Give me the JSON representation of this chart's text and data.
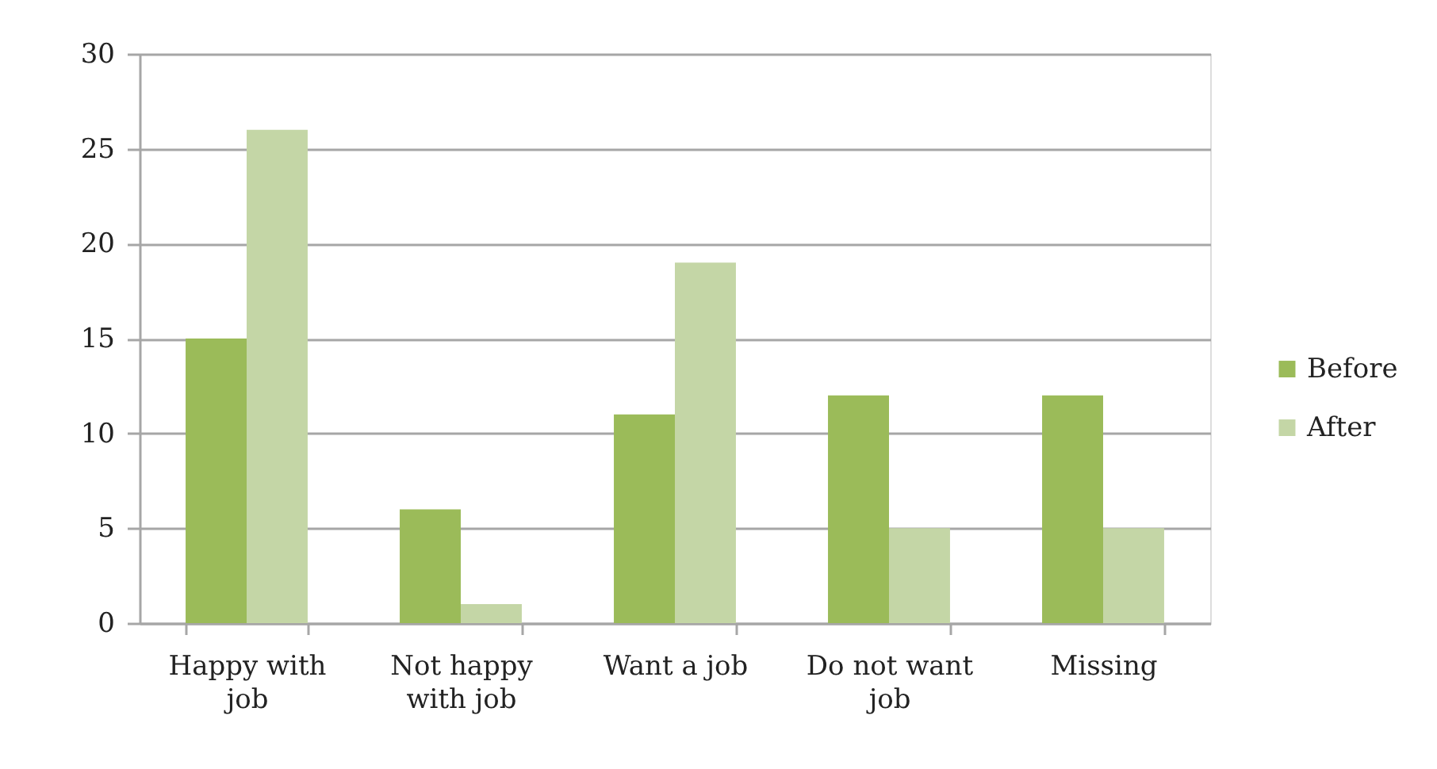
{
  "chart_data": {
    "type": "bar",
    "categories": [
      "Happy with job",
      "Not happy with job",
      "Want a job",
      "Do not want job",
      "Missing"
    ],
    "series": [
      {
        "name": "Before",
        "color": "#9bbb59",
        "values": [
          15,
          6,
          11,
          12,
          12
        ]
      },
      {
        "name": "After",
        "color": "#c4d6a6",
        "values": [
          26,
          1,
          19,
          5,
          5
        ]
      }
    ],
    "ylim": [
      0,
      30
    ],
    "yticks": [
      0,
      5,
      10,
      15,
      20,
      25,
      30
    ],
    "grid": "y",
    "legend": "right"
  }
}
